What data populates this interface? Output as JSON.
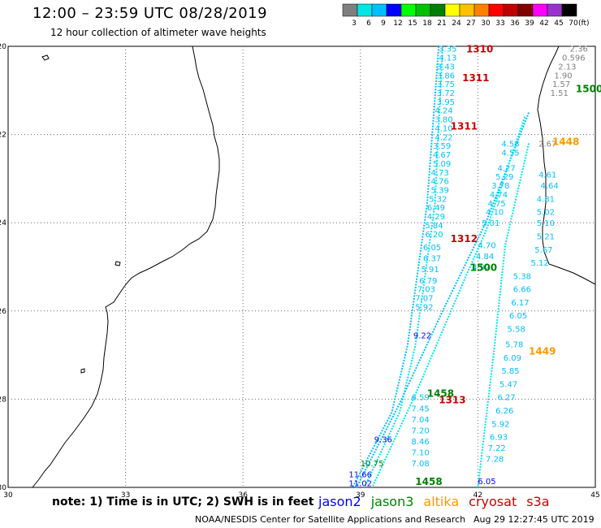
{
  "header": {
    "title": "12:00 – 23:59 UTC 08/28/2019",
    "subtitle": "12 hour collection of altimeter wave heights"
  },
  "colorbar": {
    "ticks": [
      "3",
      "6",
      "9",
      "12",
      "15",
      "18",
      "21",
      "24",
      "27",
      "30",
      "33",
      "36",
      "39",
      "42",
      "45",
      "70"
    ],
    "unit": "(ft)",
    "colors": [
      "#7f7f7f",
      "#00e6e6",
      "#00bfff",
      "#0000ff",
      "#00ff00",
      "#00c000",
      "#008000",
      "#ffff00",
      "#ffc000",
      "#ff8000",
      "#ff0000",
      "#c00000",
      "#800000",
      "#ff00ff",
      "#9932cc",
      "#000000"
    ]
  },
  "map": {
    "lon_ticks": [
      "30",
      "33",
      "36",
      "39",
      "42",
      "45"
    ],
    "lat_ticks": [
      "-20",
      "-22",
      "-24",
      "-26",
      "-28",
      "-30"
    ],
    "lon_range": [
      30,
      45
    ],
    "lat_range": [
      -30,
      -20
    ],
    "coast_color": "#000000",
    "grid_color": "#666666"
  },
  "track_labels": [
    {
      "text": "1310",
      "lon": 41.7,
      "lat": -20.05,
      "color": "#cc0000"
    },
    {
      "text": "1311",
      "lon": 41.6,
      "lat": -20.7,
      "color": "#cc0000"
    },
    {
      "text": "1311",
      "lon": 41.3,
      "lat": -21.8,
      "color": "#cc0000"
    },
    {
      "text": "1312",
      "lon": 41.3,
      "lat": -24.35,
      "color": "#cc0000"
    },
    {
      "text": "1313",
      "lon": 41.0,
      "lat": -28.0,
      "color": "#cc0000"
    },
    {
      "text": "1500",
      "lon": 44.5,
      "lat": -20.95,
      "color": "#008000"
    },
    {
      "text": "1500",
      "lon": 41.8,
      "lat": -25.0,
      "color": "#008000"
    },
    {
      "text": "1458",
      "lon": 40.7,
      "lat": -27.85,
      "color": "#008000"
    },
    {
      "text": "1458",
      "lon": 40.4,
      "lat": -29.85,
      "color": "#008000"
    },
    {
      "text": "1448",
      "lon": 43.9,
      "lat": -22.15,
      "color": "#ff9900"
    },
    {
      "text": "1449",
      "lon": 43.3,
      "lat": -26.9,
      "color": "#ff9900"
    }
  ],
  "wave_heights": [
    {
      "v": "3.35",
      "lon": 41.0,
      "lat": -20.05,
      "c": "#00bfff"
    },
    {
      "v": "4.13",
      "lon": 41.0,
      "lat": -20.25,
      "c": "#00bfff"
    },
    {
      "v": "3.43",
      "lon": 40.95,
      "lat": -20.45,
      "c": "#00bfff"
    },
    {
      "v": "3.86",
      "lon": 40.95,
      "lat": -20.65,
      "c": "#00bfff"
    },
    {
      "v": "3.75",
      "lon": 40.95,
      "lat": -20.85,
      "c": "#00bfff"
    },
    {
      "v": "3.72",
      "lon": 40.95,
      "lat": -21.05,
      "c": "#00bfff"
    },
    {
      "v": "3.95",
      "lon": 40.95,
      "lat": -21.25,
      "c": "#00bfff"
    },
    {
      "v": "4.24",
      "lon": 40.9,
      "lat": -21.45,
      "c": "#00bfff"
    },
    {
      "v": "3.80",
      "lon": 40.9,
      "lat": -21.65,
      "c": "#00bfff"
    },
    {
      "v": "4.10",
      "lon": 40.9,
      "lat": -21.85,
      "c": "#00bfff"
    },
    {
      "v": "4.22",
      "lon": 40.9,
      "lat": -22.05,
      "c": "#00bfff"
    },
    {
      "v": "3.59",
      "lon": 40.85,
      "lat": -22.25,
      "c": "#00bfff"
    },
    {
      "v": "4.67",
      "lon": 40.85,
      "lat": -22.45,
      "c": "#00bfff"
    },
    {
      "v": "5.09",
      "lon": 40.85,
      "lat": -22.65,
      "c": "#00bfff"
    },
    {
      "v": "4.73",
      "lon": 40.8,
      "lat": -22.85,
      "c": "#00bfff"
    },
    {
      "v": "4.76",
      "lon": 40.8,
      "lat": -23.05,
      "c": "#00bfff"
    },
    {
      "v": "5.39",
      "lon": 40.8,
      "lat": -23.25,
      "c": "#00bfff"
    },
    {
      "v": "5.32",
      "lon": 40.75,
      "lat": -23.45,
      "c": "#00bfff"
    },
    {
      "v": "6.49",
      "lon": 40.7,
      "lat": -23.65,
      "c": "#00bfff"
    },
    {
      "v": "4.29",
      "lon": 40.7,
      "lat": -23.85,
      "c": "#00bfff"
    },
    {
      "v": "5.84",
      "lon": 40.65,
      "lat": -24.05,
      "c": "#00bfff"
    },
    {
      "v": "6.20",
      "lon": 40.65,
      "lat": -24.25,
      "c": "#00bfff"
    },
    {
      "v": "6.05",
      "lon": 40.6,
      "lat": -24.55,
      "c": "#00bfff"
    },
    {
      "v": "6.37",
      "lon": 40.6,
      "lat": -24.8,
      "c": "#00bfff"
    },
    {
      "v": "5.91",
      "lon": 40.55,
      "lat": -25.05,
      "c": "#00bfff"
    },
    {
      "v": "6.79",
      "lon": 40.5,
      "lat": -25.3,
      "c": "#00bfff"
    },
    {
      "v": "7.03",
      "lon": 40.45,
      "lat": -25.5,
      "c": "#00bfff"
    },
    {
      "v": "7.07",
      "lon": 40.4,
      "lat": -25.7,
      "c": "#00bfff"
    },
    {
      "v": "5.92",
      "lon": 40.4,
      "lat": -25.9,
      "c": "#00bfff"
    },
    {
      "v": "9.22",
      "lon": 40.35,
      "lat": -26.55,
      "c": "#0000ff"
    },
    {
      "v": "6.59",
      "lon": 40.3,
      "lat": -27.95,
      "c": "#00bfff"
    },
    {
      "v": "7.45",
      "lon": 40.3,
      "lat": -28.2,
      "c": "#00bfff"
    },
    {
      "v": "7.04",
      "lon": 40.3,
      "lat": -28.45,
      "c": "#00bfff"
    },
    {
      "v": "7.20",
      "lon": 40.3,
      "lat": -28.7,
      "c": "#00bfff"
    },
    {
      "v": "8.46",
      "lon": 40.3,
      "lat": -28.95,
      "c": "#00bfff"
    },
    {
      "v": "7.10",
      "lon": 40.3,
      "lat": -29.2,
      "c": "#00bfff"
    },
    {
      "v": "7.08",
      "lon": 40.3,
      "lat": -29.45,
      "c": "#00bfff"
    },
    {
      "v": "9.36",
      "lon": 39.35,
      "lat": -28.9,
      "c": "#0000ff"
    },
    {
      "v": "10.75",
      "lon": 39.0,
      "lat": -29.45,
      "c": "#008000"
    },
    {
      "v": "11.66",
      "lon": 38.7,
      "lat": -29.7,
      "c": "#0000ff"
    },
    {
      "v": "11.02",
      "lon": 38.7,
      "lat": -29.9,
      "c": "#0000ff"
    },
    {
      "v": "4.58",
      "lon": 42.6,
      "lat": -22.2,
      "c": "#00bfff"
    },
    {
      "v": "4.55",
      "lon": 42.6,
      "lat": -22.4,
      "c": "#00bfff"
    },
    {
      "v": "4.27",
      "lon": 42.5,
      "lat": -22.75,
      "c": "#00bfff"
    },
    {
      "v": "5.29",
      "lon": 42.45,
      "lat": -22.95,
      "c": "#00bfff"
    },
    {
      "v": "3.78",
      "lon": 42.35,
      "lat": -23.15,
      "c": "#00bfff"
    },
    {
      "v": "4.74",
      "lon": 42.3,
      "lat": -23.35,
      "c": "#00bfff"
    },
    {
      "v": "4.75",
      "lon": 42.25,
      "lat": -23.55,
      "c": "#00bfff"
    },
    {
      "v": "4.10",
      "lon": 42.2,
      "lat": -23.75,
      "c": "#00bfff"
    },
    {
      "v": "5.01",
      "lon": 42.1,
      "lat": -24.0,
      "c": "#00bfff"
    },
    {
      "v": "4.70",
      "lon": 42.0,
      "lat": -24.5,
      "c": "#00bfff"
    },
    {
      "v": "4.84",
      "lon": 41.95,
      "lat": -24.75,
      "c": "#00bfff"
    },
    {
      "v": "4.92",
      "lon": 41.85,
      "lat": -25.0,
      "c": "#00bfff"
    },
    {
      "v": "5.38",
      "lon": 42.9,
      "lat": -25.2,
      "c": "#00bfff"
    },
    {
      "v": "6.66",
      "lon": 42.9,
      "lat": -25.5,
      "c": "#00bfff"
    },
    {
      "v": "6.17",
      "lon": 42.85,
      "lat": -25.8,
      "c": "#00bfff"
    },
    {
      "v": "6.05",
      "lon": 42.8,
      "lat": -26.1,
      "c": "#00bfff"
    },
    {
      "v": "5.58",
      "lon": 42.75,
      "lat": -26.4,
      "c": "#00bfff"
    },
    {
      "v": "5.78",
      "lon": 42.7,
      "lat": -26.75,
      "c": "#00bfff"
    },
    {
      "v": "6.09",
      "lon": 42.65,
      "lat": -27.05,
      "c": "#00bfff"
    },
    {
      "v": "5.85",
      "lon": 42.6,
      "lat": -27.35,
      "c": "#00bfff"
    },
    {
      "v": "5.47",
      "lon": 42.55,
      "lat": -27.65,
      "c": "#00bfff"
    },
    {
      "v": "6.27",
      "lon": 42.5,
      "lat": -27.95,
      "c": "#00bfff"
    },
    {
      "v": "6.26",
      "lon": 42.45,
      "lat": -28.25,
      "c": "#00bfff"
    },
    {
      "v": "5.92",
      "lon": 42.35,
      "lat": -28.55,
      "c": "#00bfff"
    },
    {
      "v": "6.93",
      "lon": 42.3,
      "lat": -28.85,
      "c": "#00bfff"
    },
    {
      "v": "7.22",
      "lon": 42.25,
      "lat": -29.1,
      "c": "#00bfff"
    },
    {
      "v": "7.28",
      "lon": 42.2,
      "lat": -29.35,
      "c": "#00bfff"
    },
    {
      "v": "6.05",
      "lon": 42.0,
      "lat": -29.85,
      "c": "#0000ff"
    },
    {
      "v": "2.36",
      "lon": 44.35,
      "lat": -20.05,
      "c": "#7f7f7f"
    },
    {
      "v": "0.596",
      "lon": 44.15,
      "lat": -20.25,
      "c": "#7f7f7f"
    },
    {
      "v": "2.13",
      "lon": 44.05,
      "lat": -20.45,
      "c": "#7f7f7f"
    },
    {
      "v": "1.90",
      "lon": 43.95,
      "lat": -20.65,
      "c": "#7f7f7f"
    },
    {
      "v": "1.57",
      "lon": 43.9,
      "lat": -20.85,
      "c": "#7f7f7f"
    },
    {
      "v": "1.51",
      "lon": 43.85,
      "lat": -21.05,
      "c": "#7f7f7f"
    },
    {
      "v": "2.67",
      "lon": 43.55,
      "lat": -22.2,
      "c": "#7f7f7f"
    },
    {
      "v": "4.61",
      "lon": 43.55,
      "lat": -22.9,
      "c": "#00bfff"
    },
    {
      "v": "4.64",
      "lon": 43.6,
      "lat": -23.15,
      "c": "#00bfff"
    },
    {
      "v": "4.81",
      "lon": 43.5,
      "lat": -23.45,
      "c": "#00bfff"
    },
    {
      "v": "5.02",
      "lon": 43.5,
      "lat": -23.75,
      "c": "#00bfff"
    },
    {
      "v": "5.10",
      "lon": 43.5,
      "lat": -24.0,
      "c": "#00bfff"
    },
    {
      "v": "5.21",
      "lon": 43.5,
      "lat": -24.3,
      "c": "#00bfff"
    },
    {
      "v": "5.67",
      "lon": 43.45,
      "lat": -24.6,
      "c": "#00bfff"
    },
    {
      "v": "5.12",
      "lon": 43.35,
      "lat": -24.9,
      "c": "#00bfff"
    }
  ],
  "tracks": [
    {
      "color": "#00bfff",
      "points": [
        [
          41.0,
          -20.0
        ],
        [
          40.7,
          -23.6
        ],
        [
          40.2,
          -26.8
        ],
        [
          39.8,
          -28.3
        ],
        [
          38.8,
          -30.0
        ]
      ]
    },
    {
      "color": "#00e6e6",
      "points": [
        [
          41.1,
          -20.0
        ],
        [
          40.9,
          -23.6
        ],
        [
          40.4,
          -26.8
        ],
        [
          40.0,
          -28.3
        ],
        [
          39.1,
          -30.0
        ]
      ]
    },
    {
      "color": "#00bfff",
      "points": [
        [
          43.3,
          -21.5
        ],
        [
          42.2,
          -24.0
        ],
        [
          41.1,
          -26.0
        ],
        [
          40.0,
          -28.1
        ],
        [
          38.9,
          -30.0
        ]
      ]
    },
    {
      "color": "#00e6e6",
      "points": [
        [
          43.2,
          -21.6
        ],
        [
          42.2,
          -24.2
        ],
        [
          41.7,
          -25.2
        ],
        [
          40.4,
          -27.9
        ],
        [
          39.3,
          -30.0
        ]
      ]
    },
    {
      "color": "#00e6e6",
      "points": [
        [
          43.3,
          -22.2
        ],
        [
          42.7,
          -24.5
        ],
        [
          42.4,
          -27.0
        ],
        [
          42.0,
          -30.0
        ]
      ]
    }
  ],
  "footer": {
    "note": "note:  1) Time is in UTC;  2) SWH is in feet",
    "sats": [
      {
        "name": "jason2",
        "color": "#0000ff"
      },
      {
        "name": "jason3",
        "color": "#008000"
      },
      {
        "name": "altika",
        "color": "#ff9900"
      },
      {
        "name": "cryosat",
        "color": "#cc0000"
      },
      {
        "name": "s3a",
        "color": "#cc0000"
      }
    ],
    "credit": "NOAA/NESDIS Center for Satellite Applications and Research",
    "date": "Aug 29 12:27:45 UTC 2019"
  }
}
